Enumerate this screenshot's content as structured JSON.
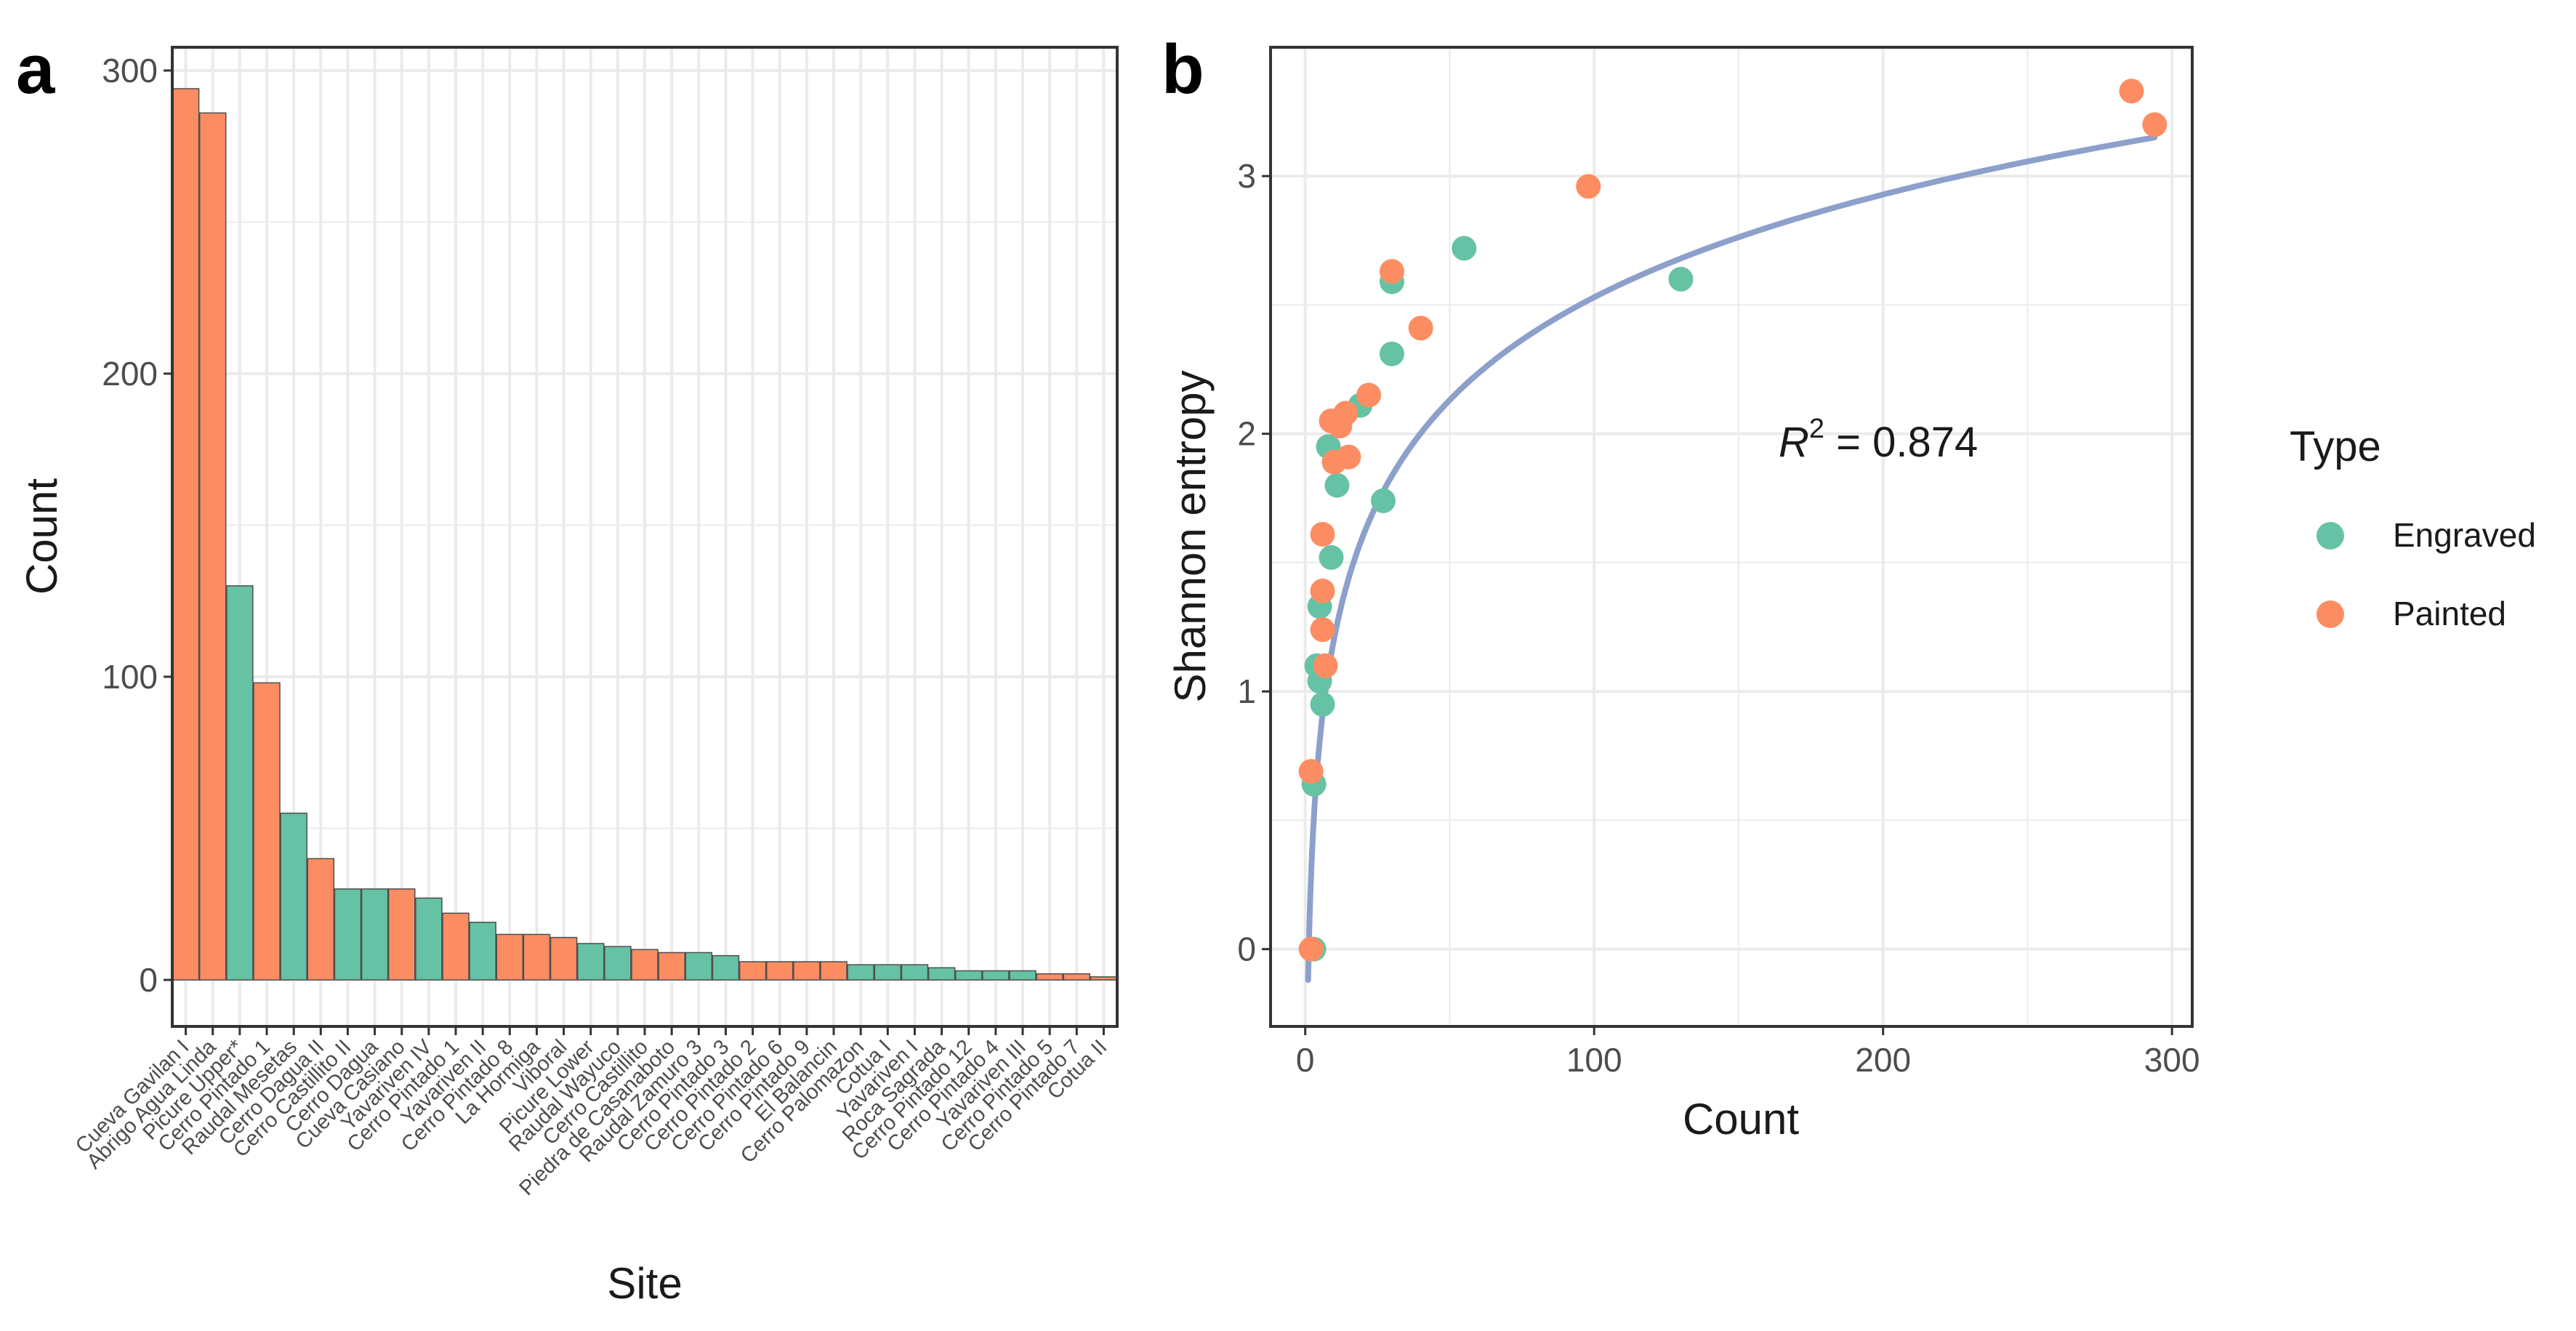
{
  "panels": {
    "a": {
      "letter": "a",
      "xlabel": "Site",
      "ylabel": "Count",
      "yticks": [
        "0",
        "100",
        "200",
        "300"
      ]
    },
    "b": {
      "letter": "b",
      "xlabel": "Count",
      "ylabel": "Shannon entropy",
      "xticks": [
        "0",
        "100",
        "200",
        "300"
      ],
      "yticks": [
        "0",
        "1",
        "2",
        "3"
      ],
      "annotation": {
        "symbol": "R",
        "exponent": "2",
        "text": " = 0.874"
      }
    }
  },
  "legend": {
    "title": "Type",
    "items": [
      {
        "label": "Engraved",
        "color": "#66c2a5"
      },
      {
        "label": "Painted",
        "color": "#fc8d62"
      }
    ]
  },
  "colors": {
    "Engraved": "#66c2a5",
    "Painted": "#fc8d62",
    "fit": "#8da0cb",
    "grid": "#ebebeb",
    "frame": "#333333"
  },
  "chart_data": [
    {
      "type": "bar",
      "title": "",
      "xlabel": "Site",
      "ylabel": "Count",
      "ylim": [
        0,
        310
      ],
      "categories": [
        "Cueva Gavilan I",
        "Abrigo Agua Linda",
        "Picure Upper*",
        "Cerro Pintado 1",
        "Raudal Mesetas",
        "Cerro Dagua II",
        "Cerro Castillito II",
        "Cerro Dagua",
        "Cueva Casiano",
        "Yavariven IV",
        "Cerro Pintado 1",
        "Yavariven II",
        "Cerro Pintado 8",
        "La Hormiga",
        "Viboral",
        "Picure Lower",
        "Raudal Wayuco",
        "Cerro Castillito",
        "Piedra de Casanaboto",
        "Raudal Zamuro 3",
        "Cerro Pintado 3",
        "Cerro Pintado 2",
        "Cerro Pintado 6",
        "Cerro Pintado 9",
        "El Balancin",
        "Cerro Palomazon",
        "Cotua I",
        "Yavariven I",
        "Roca Sagrada",
        "Cerro Pintado 12",
        "Cerro Pintado 4",
        "Yavariven III",
        "Cerro Pintado 5",
        "Cerro Pintado 7",
        "Cotua II"
      ],
      "types": [
        "Painted",
        "Painted",
        "Engraved",
        "Painted",
        "Engraved",
        "Painted",
        "Engraved",
        "Engraved",
        "Painted",
        "Engraved",
        "Painted",
        "Engraved",
        "Painted",
        "Painted",
        "Painted",
        "Engraved",
        "Engraved",
        "Painted",
        "Painted",
        "Engraved",
        "Engraved",
        "Painted",
        "Painted",
        "Painted",
        "Painted",
        "Engraved",
        "Engraved",
        "Engraved",
        "Engraved",
        "Engraved",
        "Engraved",
        "Engraved",
        "Painted",
        "Painted",
        "Painted"
      ],
      "values": [
        294,
        286,
        130,
        98,
        55,
        40,
        30,
        30,
        30,
        27,
        22,
        19,
        15,
        15,
        14,
        12,
        11,
        10,
        9,
        9,
        8,
        6,
        6,
        6,
        6,
        5,
        5,
        5,
        4,
        3,
        3,
        3,
        2,
        2,
        1
      ]
    },
    {
      "type": "scatter",
      "title": "",
      "xlabel": "Count",
      "ylabel": "Shannon entropy",
      "xlim": [
        -12,
        307
      ],
      "ylim": [
        -0.3,
        3.5
      ],
      "series": [
        {
          "name": "Engraved",
          "x": [
            3,
            3,
            4,
            5,
            5,
            6,
            8,
            9,
            11,
            19,
            27,
            30,
            30,
            55,
            130
          ],
          "y": [
            0.0,
            0.64,
            1.1,
            1.04,
            1.33,
            0.95,
            1.95,
            1.52,
            1.8,
            2.11,
            1.74,
            2.31,
            2.59,
            2.72,
            2.6
          ]
        },
        {
          "name": "Painted",
          "x": [
            2,
            2,
            6,
            6,
            6,
            7,
            9,
            10,
            12,
            14,
            15,
            22,
            30,
            40,
            98,
            286,
            294
          ],
          "y": [
            0.0,
            0.69,
            1.24,
            1.39,
            1.61,
            1.1,
            2.05,
            1.89,
            2.03,
            2.08,
            1.91,
            2.15,
            2.63,
            2.41,
            2.96,
            3.33,
            3.2
          ]
        }
      ],
      "fit": {
        "model": "logarithmic",
        "x_start": 1,
        "x_end": 294,
        "r_squared": 0.874
      }
    }
  ]
}
